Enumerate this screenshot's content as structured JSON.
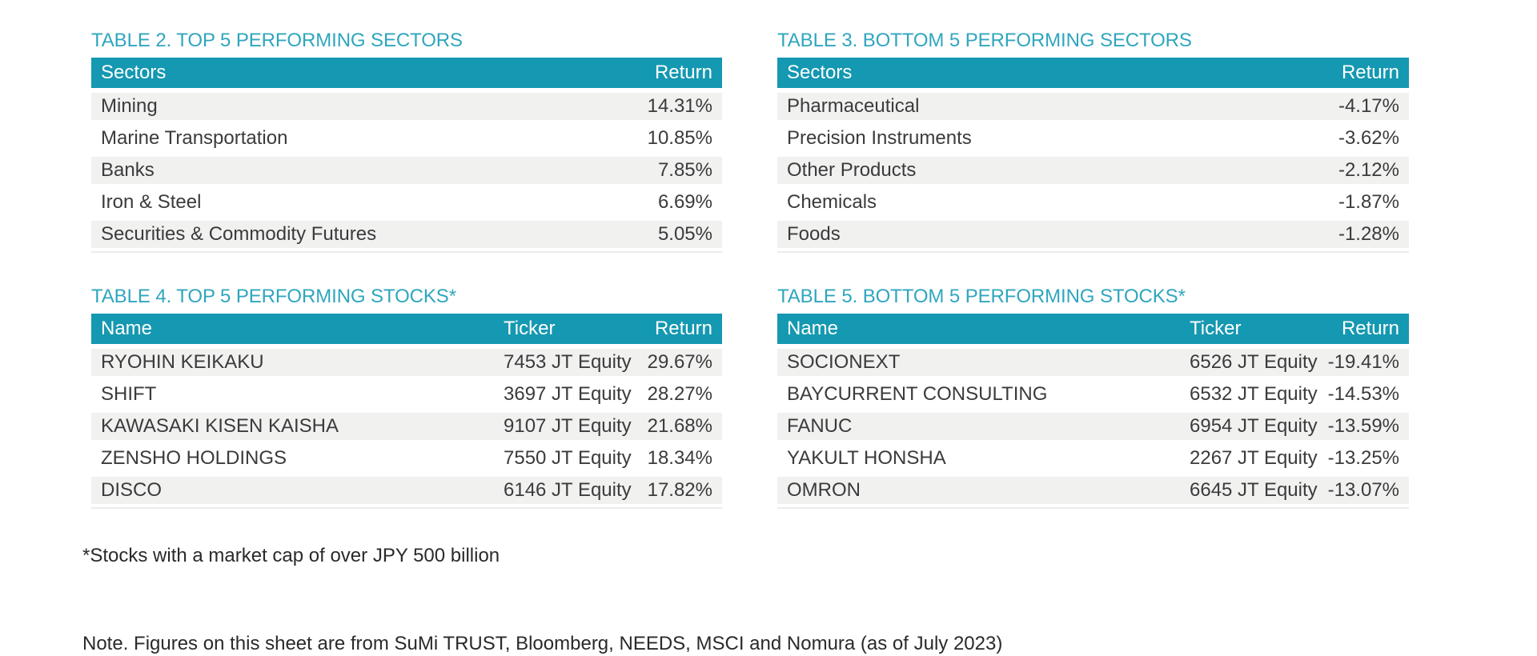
{
  "colors": {
    "header_bg": "#1598b1",
    "title_teal": "#2fa6be",
    "row_alt_bg": "#f1f1f0",
    "body_text": "#3b3b3d",
    "header_text": "#ffffff"
  },
  "tables": [
    {
      "id": "table-2",
      "title": "TABLE 2. TOP 5 PERFORMING SECTORS",
      "columns": [
        "Sectors",
        "Return"
      ],
      "rows": [
        [
          "Mining",
          "14.31%"
        ],
        [
          "Marine Transportation",
          "10.85%"
        ],
        [
          "Banks",
          "7.85%"
        ],
        [
          "Iron & Steel",
          "6.69%"
        ],
        [
          "Securities & Commodity Futures",
          "5.05%"
        ]
      ]
    },
    {
      "id": "table-3",
      "title": "TABLE 3. BOTTOM 5 PERFORMING SECTORS",
      "columns": [
        "Sectors",
        "Return"
      ],
      "rows": [
        [
          "Pharmaceutical",
          "-4.17%"
        ],
        [
          "Precision Instruments",
          "-3.62%"
        ],
        [
          "Other Products",
          "-2.12%"
        ],
        [
          "Chemicals",
          "-1.87%"
        ],
        [
          "Foods",
          "-1.28%"
        ]
      ]
    },
    {
      "id": "table-4",
      "title": "TABLE 4. TOP 5 PERFORMING STOCKS*",
      "columns": [
        "Name",
        "Ticker",
        "Return"
      ],
      "rows": [
        [
          "RYOHIN KEIKAKU",
          "7453 JT Equity",
          "29.67%"
        ],
        [
          "SHIFT",
          "3697 JT Equity",
          "28.27%"
        ],
        [
          "KAWASAKI KISEN KAISHA",
          "9107 JT Equity",
          "21.68%"
        ],
        [
          "ZENSHO HOLDINGS",
          "7550 JT Equity",
          "18.34%"
        ],
        [
          "DISCO",
          "6146 JT Equity",
          "17.82%"
        ]
      ]
    },
    {
      "id": "table-5",
      "title": "TABLE 5. BOTTOM 5 PERFORMING STOCKS*",
      "columns": [
        "Name",
        "Ticker",
        "Return"
      ],
      "rows": [
        [
          "SOCIONEXT",
          "6526 JT Equity",
          "-19.41%"
        ],
        [
          "BAYCURRENT CONSULTING",
          "6532 JT Equity",
          "-14.53%"
        ],
        [
          "FANUC",
          "6954 JT Equity",
          "-13.59%"
        ],
        [
          "YAKULT HONSHA",
          "2267 JT Equity",
          "-13.25%"
        ],
        [
          "OMRON",
          "6645 JT Equity",
          "-13.07%"
        ]
      ]
    }
  ],
  "footnotes": {
    "market_cap_note": "*Stocks with a market cap of over JPY 500 billion",
    "source_note": "Note. Figures on this sheet are from SuMi TRUST, Bloomberg, NEEDS, MSCI and Nomura (as of July 2023)"
  }
}
